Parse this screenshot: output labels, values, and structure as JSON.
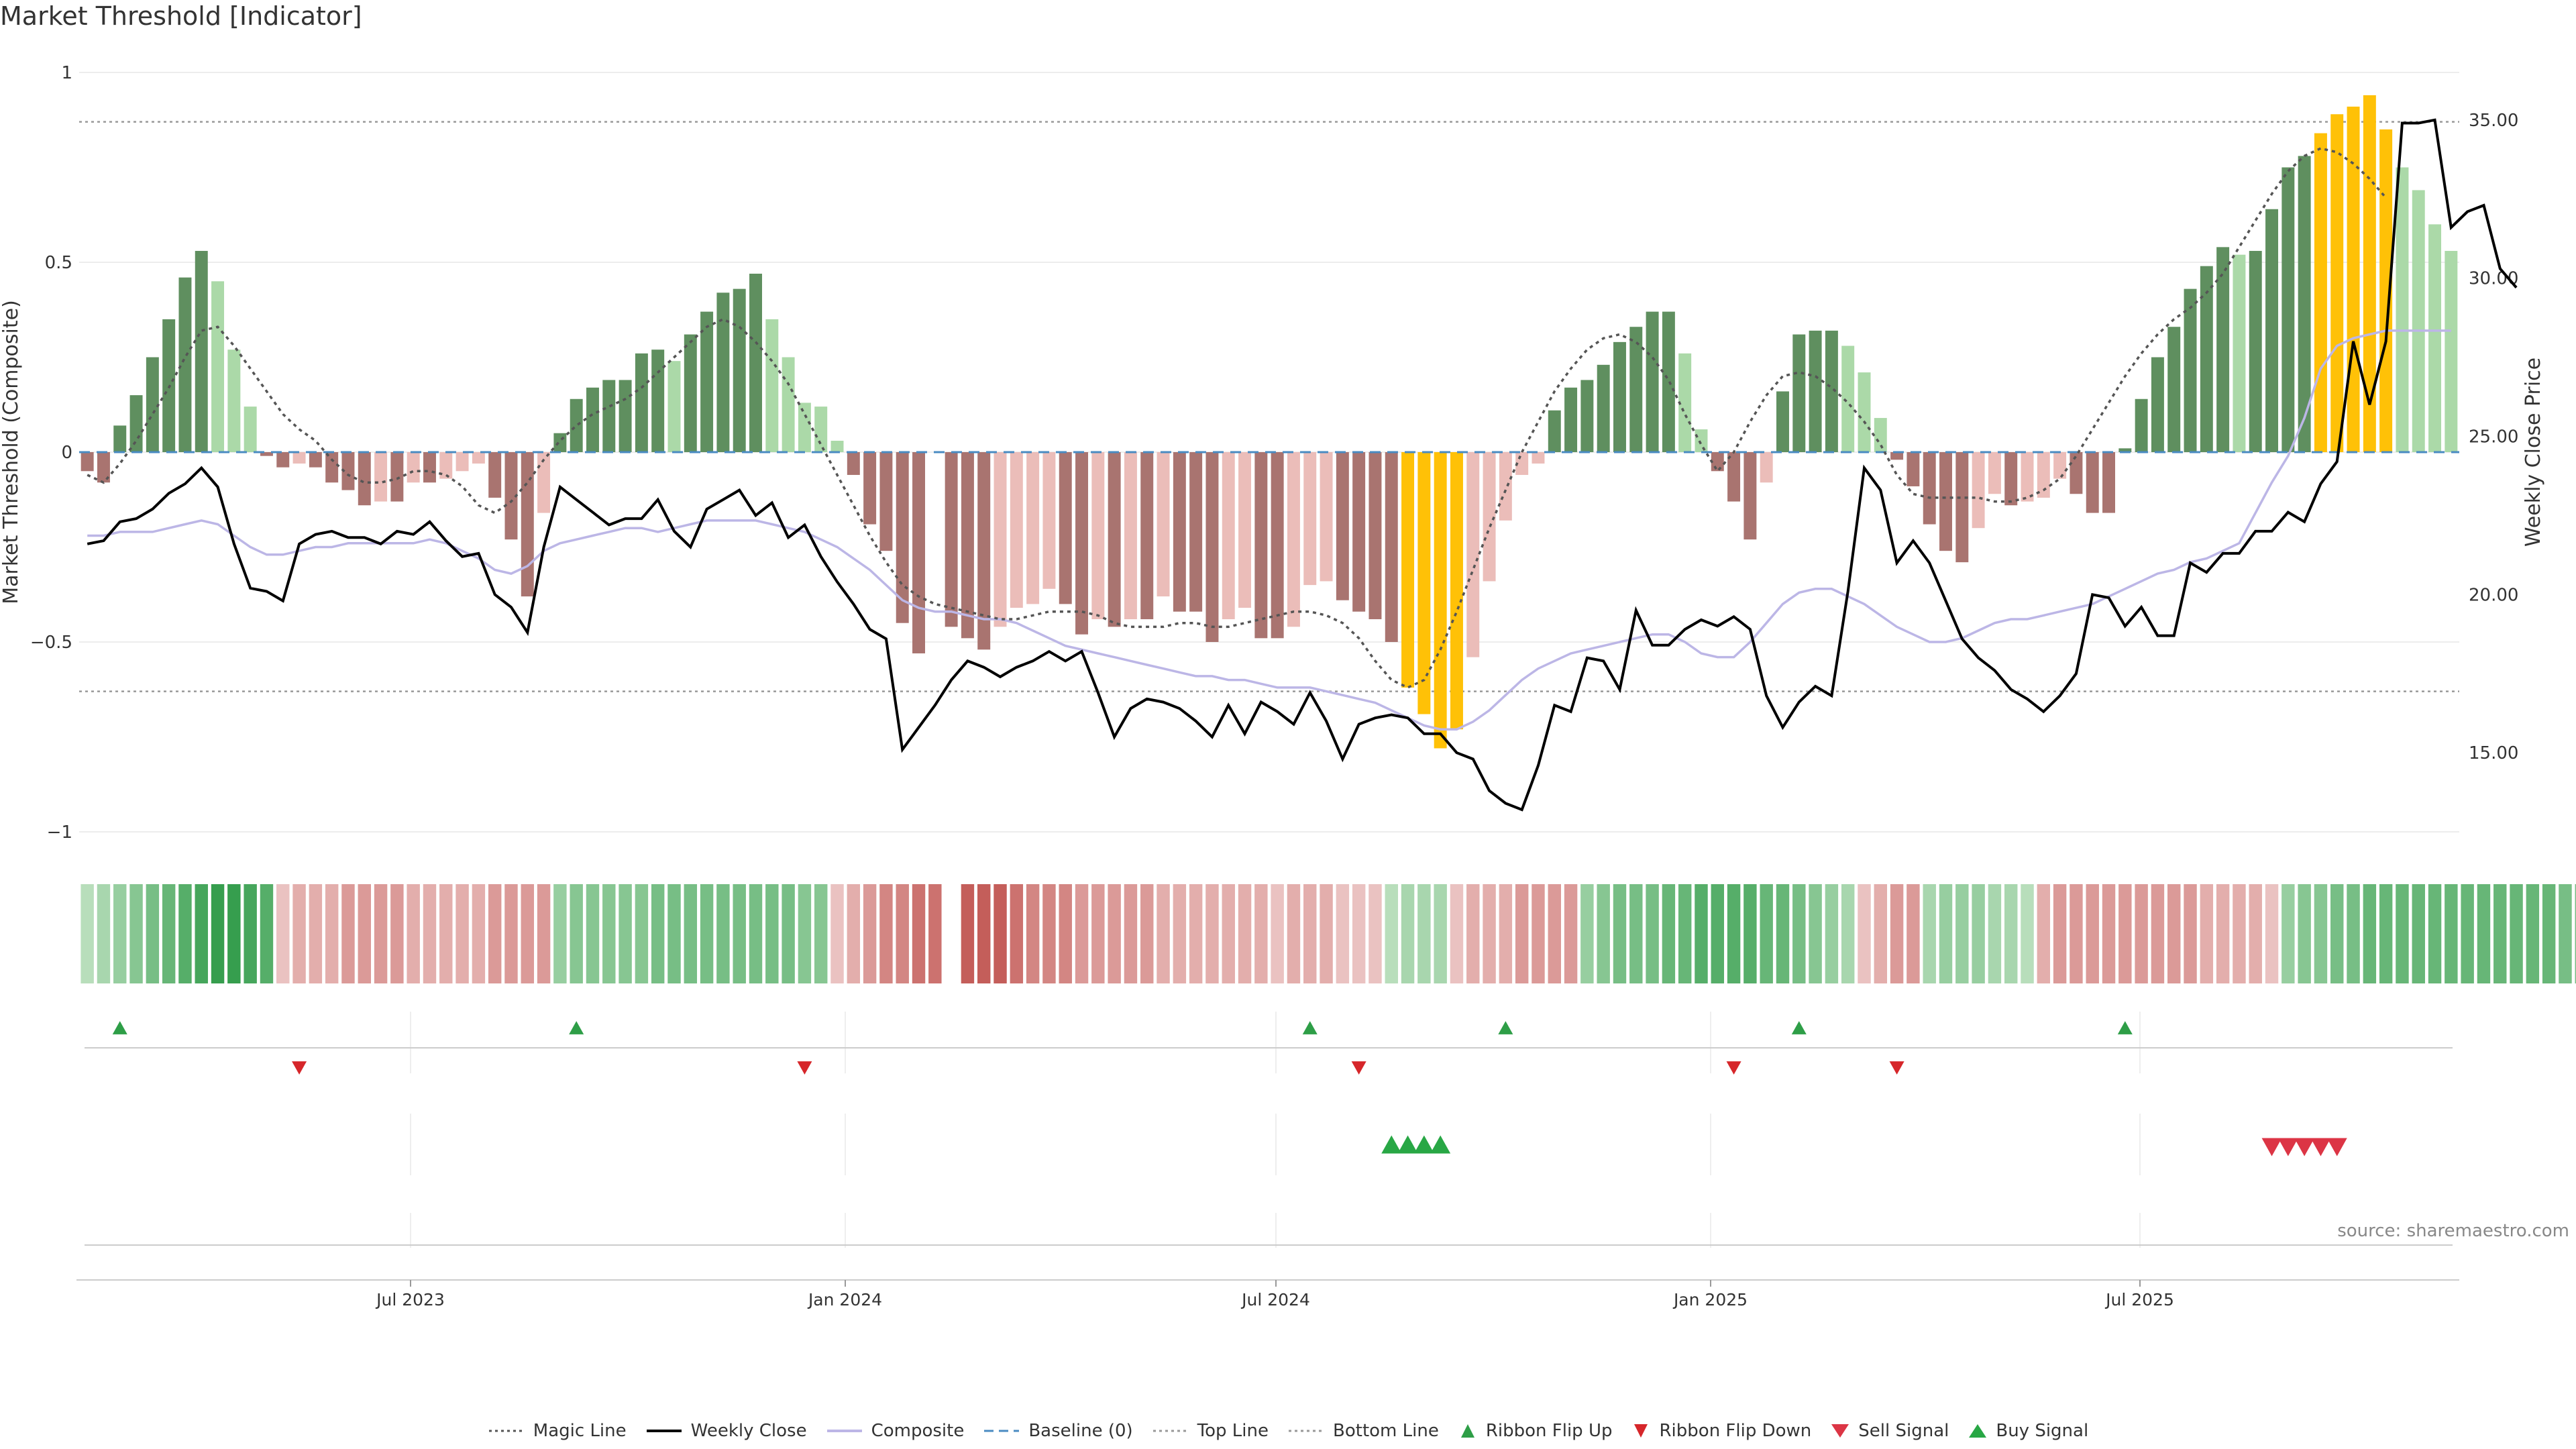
{
  "title": "Market Threshold [Indicator]",
  "source": "source: sharemaestro.com",
  "chart_data": {
    "type": "bar",
    "title": "Market Threshold [Indicator]",
    "ylabel": "Market Threshold (Composite)",
    "ylabel_right": "Weekly Close Price",
    "ylim": [
      -1,
      1
    ],
    "ylim_right": [
      12.5,
      36.5
    ],
    "yticks_left": [
      "1",
      "0.5",
      "0",
      "−0.5",
      "−1"
    ],
    "yticks_right": [
      "35.00",
      "30.00",
      "25.00",
      "20.00",
      "15.00"
    ],
    "xticks": [
      "Jul 2023",
      "Jan 2024",
      "Jul 2024",
      "Jan 2025",
      "Jul 2025"
    ],
    "top_line": 0.87,
    "bottom_line": -0.63,
    "bars": [
      -0.05,
      -0.08,
      0.07,
      0.15,
      0.25,
      0.35,
      0.46,
      0.53,
      0.45,
      0.27,
      0.12,
      -0.01,
      -0.04,
      -0.03,
      -0.04,
      -0.08,
      -0.1,
      -0.14,
      -0.13,
      -0.13,
      -0.08,
      -0.08,
      -0.07,
      -0.05,
      -0.03,
      -0.12,
      -0.23,
      -0.38,
      -0.16,
      0.05,
      0.14,
      0.17,
      0.19,
      0.19,
      0.26,
      0.27,
      0.24,
      0.31,
      0.37,
      0.42,
      0.43,
      0.47,
      0.35,
      0.25,
      0.13,
      0.12,
      0.03,
      -0.06,
      -0.19,
      -0.26,
      -0.45,
      -0.53,
      0,
      -0.46,
      -0.49,
      -0.52,
      -0.46,
      -0.41,
      -0.4,
      -0.36,
      -0.4,
      -0.48,
      -0.44,
      -0.46,
      -0.44,
      -0.44,
      -0.38,
      -0.42,
      -0.42,
      -0.5,
      -0.44,
      -0.41,
      -0.49,
      -0.49,
      -0.46,
      -0.35,
      -0.34,
      -0.39,
      -0.42,
      -0.44,
      -0.5,
      -0.62,
      -0.69,
      -0.78,
      -0.73,
      -0.54,
      -0.34,
      -0.18,
      -0.06,
      -0.03,
      0.11,
      0.17,
      0.19,
      0.23,
      0.29,
      0.33,
      0.37,
      0.37,
      0.26,
      0.06,
      -0.05,
      -0.13,
      -0.23,
      -0.08,
      0.16,
      0.31,
      0.32,
      0.32,
      0.28,
      0.21,
      0.09,
      -0.02,
      -0.09,
      -0.19,
      -0.26,
      -0.29,
      -0.2,
      -0.11,
      -0.14,
      -0.13,
      -0.12,
      -0.07,
      -0.11,
      -0.16,
      -0.16,
      0.01,
      0.14,
      0.25,
      0.33,
      0.43,
      0.49,
      0.54,
      0.52,
      0.53,
      0.64,
      0.75,
      0.78,
      0.84,
      0.89,
      0.91,
      0.94,
      0.85,
      0.75,
      0.69,
      0.6,
      0.53
    ],
    "magic_line": [
      -0.06,
      -0.08,
      -0.03,
      0.03,
      0.1,
      0.17,
      0.25,
      0.32,
      0.33,
      0.28,
      0.22,
      0.16,
      0.1,
      0.06,
      0.03,
      -0.02,
      -0.06,
      -0.08,
      -0.08,
      -0.07,
      -0.05,
      -0.05,
      -0.06,
      -0.09,
      -0.14,
      -0.16,
      -0.13,
      -0.08,
      -0.02,
      0.03,
      0.07,
      0.1,
      0.12,
      0.14,
      0.17,
      0.21,
      0.25,
      0.29,
      0.33,
      0.35,
      0.33,
      0.29,
      0.24,
      0.18,
      0.1,
      0.02,
      -0.06,
      -0.14,
      -0.22,
      -0.29,
      -0.35,
      -0.38,
      -0.4,
      -0.41,
      -0.42,
      -0.43,
      -0.44,
      -0.44,
      -0.43,
      -0.42,
      -0.42,
      -0.42,
      -0.43,
      -0.45,
      -0.46,
      -0.46,
      -0.46,
      -0.45,
      -0.45,
      -0.46,
      -0.46,
      -0.45,
      -0.44,
      -0.43,
      -0.42,
      -0.42,
      -0.43,
      -0.45,
      -0.49,
      -0.55,
      -0.6,
      -0.62,
      -0.6,
      -0.52,
      -0.42,
      -0.31,
      -0.2,
      -0.1,
      0,
      0.08,
      0.16,
      0.22,
      0.27,
      0.3,
      0.31,
      0.29,
      0.25,
      0.19,
      0.1,
      0.02,
      -0.05,
      0,
      0.08,
      0.15,
      0.2,
      0.21,
      0.2,
      0.17,
      0.13,
      0.08,
      0.02,
      -0.06,
      -0.11,
      -0.12,
      -0.12,
      -0.12,
      -0.12,
      -0.13,
      -0.13,
      -0.12,
      -0.1,
      -0.07,
      -0.01,
      0.06,
      0.13,
      0.2,
      0.26,
      0.31,
      0.35,
      0.38,
      0.42,
      0.47,
      0.54,
      0.61,
      0.68,
      0.74,
      0.78,
      0.8,
      0.79,
      0.76,
      0.72,
      0.67
    ],
    "weekly_close": [
      21.6,
      21.7,
      22.3,
      22.4,
      22.7,
      23.2,
      23.5,
      24.0,
      23.4,
      21.6,
      20.2,
      20.1,
      19.8,
      21.6,
      21.9,
      22.0,
      21.8,
      21.8,
      21.6,
      22.0,
      21.9,
      22.3,
      21.7,
      21.2,
      21.3,
      20.0,
      19.6,
      18.8,
      21.5,
      23.4,
      23.0,
      22.6,
      22.2,
      22.4,
      22.4,
      23.0,
      22.0,
      21.5,
      22.7,
      23.0,
      23.3,
      22.5,
      22.9,
      21.8,
      22.2,
      21.2,
      20.4,
      19.7,
      18.9,
      18.6,
      15.1,
      15.8,
      16.5,
      17.3,
      17.9,
      17.7,
      17.4,
      17.7,
      17.9,
      18.2,
      17.9,
      18.2,
      16.9,
      15.5,
      16.4,
      16.7,
      16.6,
      16.4,
      16.0,
      15.5,
      16.5,
      15.6,
      16.6,
      16.3,
      15.9,
      16.9,
      16.0,
      14.8,
      15.9,
      16.1,
      16.2,
      16.1,
      15.6,
      15.6,
      15.0,
      14.8,
      13.8,
      13.4,
      13.2,
      14.6,
      16.5,
      16.3,
      18.0,
      17.9,
      17.0,
      19.5,
      18.4,
      18.4,
      18.9,
      19.2,
      19.0,
      19.3,
      18.9,
      16.8,
      15.8,
      16.6,
      17.1,
      16.8,
      20.1,
      24.0,
      23.3,
      21.0,
      21.7,
      21.0,
      19.8,
      18.6,
      18.0,
      17.6,
      17.0,
      16.7,
      16.3,
      16.8,
      17.5,
      20.0,
      19.9,
      19.0,
      19.6,
      18.7,
      18.7,
      21.0,
      20.7,
      21.3,
      21.3,
      22.0,
      22.0,
      22.6,
      22.3,
      23.5,
      24.2,
      28.0,
      26.0,
      28.0,
      34.9,
      34.9,
      35.0,
      31.6,
      32.1,
      32.3,
      30.3,
      29.7
    ],
    "composite": [
      -0.22,
      -0.22,
      -0.21,
      -0.21,
      -0.21,
      -0.2,
      -0.19,
      -0.18,
      -0.19,
      -0.22,
      -0.25,
      -0.27,
      -0.27,
      -0.26,
      -0.25,
      -0.25,
      -0.24,
      -0.24,
      -0.24,
      -0.24,
      -0.24,
      -0.23,
      -0.24,
      -0.26,
      -0.28,
      -0.31,
      -0.32,
      -0.3,
      -0.26,
      -0.24,
      -0.23,
      -0.22,
      -0.21,
      -0.2,
      -0.2,
      -0.21,
      -0.2,
      -0.19,
      -0.18,
      -0.18,
      -0.18,
      -0.18,
      -0.19,
      -0.2,
      -0.21,
      -0.23,
      -0.25,
      -0.28,
      -0.31,
      -0.35,
      -0.39,
      -0.41,
      -0.42,
      -0.42,
      -0.43,
      -0.44,
      -0.44,
      -0.45,
      -0.47,
      -0.49,
      -0.51,
      -0.52,
      -0.53,
      -0.54,
      -0.55,
      -0.56,
      -0.57,
      -0.58,
      -0.59,
      -0.59,
      -0.6,
      -0.6,
      -0.61,
      -0.62,
      -0.62,
      -0.62,
      -0.63,
      -0.64,
      -0.65,
      -0.66,
      -0.68,
      -0.7,
      -0.72,
      -0.73,
      -0.73,
      -0.71,
      -0.68,
      -0.64,
      -0.6,
      -0.57,
      -0.55,
      -0.53,
      -0.52,
      -0.51,
      -0.5,
      -0.49,
      -0.48,
      -0.48,
      -0.5,
      -0.53,
      -0.54,
      -0.54,
      -0.5,
      -0.45,
      -0.4,
      -0.37,
      -0.36,
      -0.36,
      -0.38,
      -0.4,
      -0.43,
      -0.46,
      -0.48,
      -0.5,
      -0.5,
      -0.49,
      -0.47,
      -0.45,
      -0.44,
      -0.44,
      -0.43,
      -0.42,
      -0.41,
      -0.4,
      -0.38,
      -0.36,
      -0.34,
      -0.32,
      -0.31,
      -0.29,
      -0.28,
      -0.26,
      -0.24,
      -0.16,
      -0.08,
      -0.01,
      0.09,
      0.22,
      0.28,
      0.3,
      0.31,
      0.32,
      0.32,
      0.32,
      0.32,
      0.32
    ],
    "ribbon": [
      1,
      2,
      3,
      4,
      5,
      6,
      7,
      8,
      9,
      9,
      8,
      7,
      -1,
      -2,
      -2,
      -2,
      -3,
      -3,
      -3,
      -3,
      -2,
      -2,
      -2,
      -2,
      -2,
      -3,
      -3,
      -3,
      -3,
      3,
      4,
      4,
      4,
      4,
      4,
      5,
      5,
      5,
      5,
      5,
      5,
      5,
      5,
      5,
      4,
      4,
      -1,
      -2,
      -3,
      -4,
      -4,
      -5,
      -5,
      null,
      -6,
      -6,
      -6,
      -5,
      -4,
      -4,
      -4,
      -3,
      -3,
      -3,
      -3,
      -3,
      -2,
      -2,
      -2,
      -2,
      -2,
      -2,
      -2,
      -1,
      -2,
      -2,
      -2,
      -1,
      -1,
      -1,
      1,
      2,
      2,
      2,
      -1,
      -2,
      -2,
      -2,
      -3,
      -3,
      -3,
      -3,
      3,
      4,
      5,
      5,
      5,
      6,
      6,
      7,
      7,
      7,
      7,
      6,
      6,
      5,
      4,
      3,
      2,
      -1,
      -2,
      -3,
      -3,
      2,
      3,
      3,
      3,
      2,
      2,
      1,
      -2,
      -3,
      -3,
      -3,
      -3,
      -3,
      -3,
      -3,
      -3,
      -3,
      -2,
      -2,
      -2,
      -2,
      -1,
      3,
      4,
      4,
      5,
      5,
      6,
      6,
      6,
      6,
      6,
      6,
      6,
      6,
      6,
      6,
      6,
      6,
      5,
      5,
      5,
      4,
      3,
      2
    ],
    "ribbon_flip_up_idx": [
      2,
      30,
      75,
      87,
      105,
      125
    ],
    "ribbon_flip_down_idx": [
      13,
      44,
      78,
      101,
      111
    ],
    "buy_signal_idx": [
      80,
      81,
      82,
      83
    ],
    "sell_signal_idx": [
      134,
      135,
      136,
      137,
      138
    ]
  },
  "legend": [
    {
      "label": "Magic Line",
      "kind": "dotted",
      "color": "#555555"
    },
    {
      "label": "Weekly Close",
      "kind": "line",
      "color": "#000000"
    },
    {
      "label": "Composite",
      "kind": "line",
      "color": "#bcb6e6"
    },
    {
      "label": "Baseline (0)",
      "kind": "dashed",
      "color": "#4a8bc2"
    },
    {
      "label": "Top Line",
      "kind": "dotted",
      "color": "#999999"
    },
    {
      "label": "Bottom Line",
      "kind": "dotted",
      "color": "#999999"
    },
    {
      "label": "Ribbon Flip Up",
      "kind": "tri-up-small",
      "color": "#2e9e47"
    },
    {
      "label": "Ribbon Flip Down",
      "kind": "tri-down-small",
      "color": "#d6262a"
    },
    {
      "label": "Sell Signal",
      "kind": "tri-down",
      "color": "#dc3545"
    },
    {
      "label": "Buy Signal",
      "kind": "tri-up",
      "color": "#28a745"
    }
  ]
}
